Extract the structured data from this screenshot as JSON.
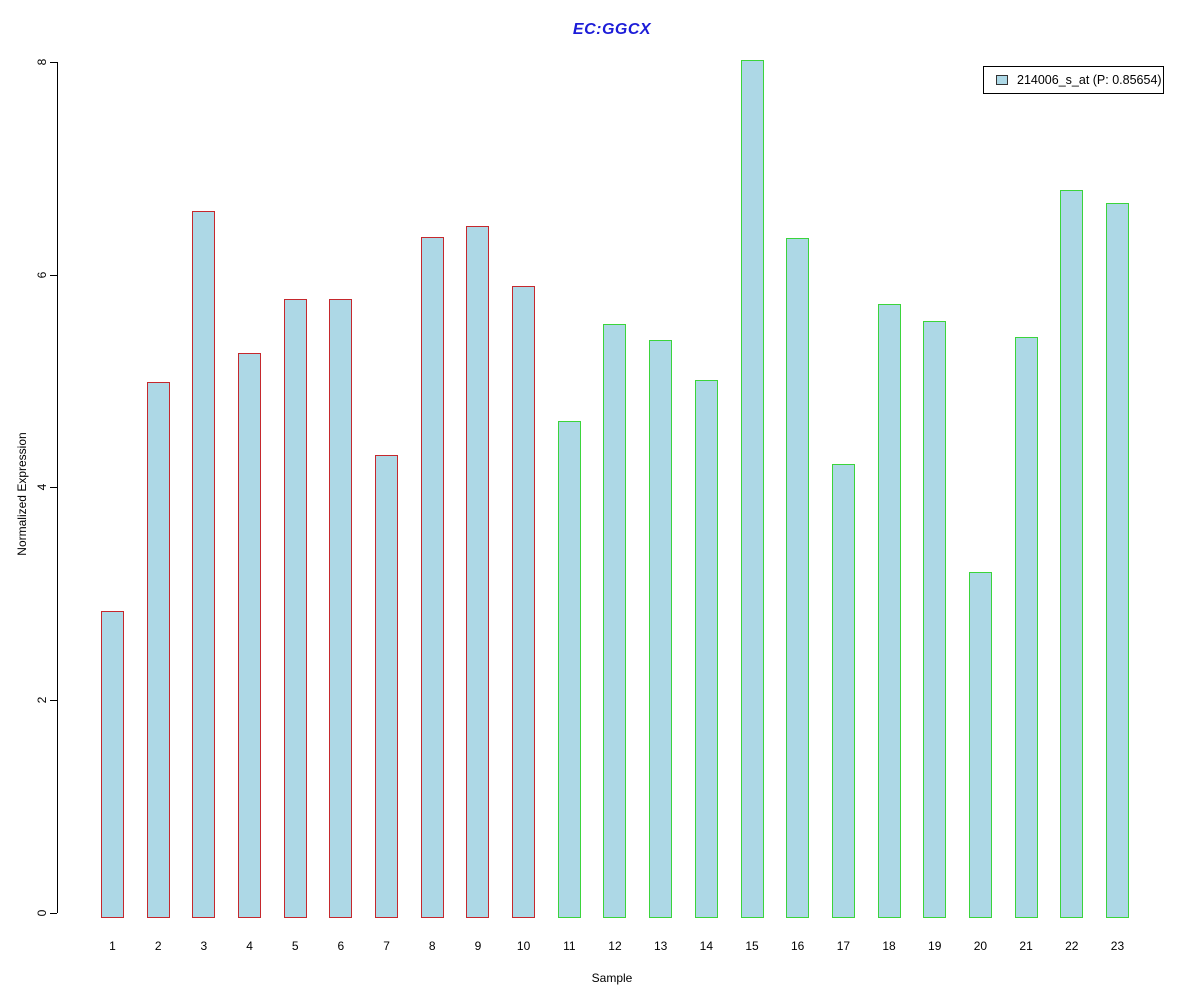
{
  "chart_data": {
    "type": "bar",
    "title": "EC:GGCX",
    "title_color": "#1c1cd8",
    "xlabel": "Sample",
    "ylabel": "Normalized Expression",
    "ylim": [
      0,
      8
    ],
    "yticks": [
      0,
      2,
      4,
      6,
      8
    ],
    "grid": false,
    "categories": [
      "1",
      "2",
      "3",
      "4",
      "5",
      "6",
      "7",
      "8",
      "9",
      "10",
      "11",
      "12",
      "13",
      "14",
      "15",
      "16",
      "17",
      "18",
      "19",
      "20",
      "21",
      "22",
      "23"
    ],
    "series": [
      {
        "name": "214006_s_at (P: 0.85654)",
        "values": [
          2.86,
          5.01,
          6.62,
          5.28,
          5.79,
          5.79,
          4.32,
          6.37,
          6.48,
          5.91,
          4.64,
          5.55,
          5.4,
          5.03,
          8.04,
          6.36,
          4.24,
          5.74,
          5.58,
          3.22,
          5.43,
          6.81,
          6.69
        ]
      }
    ],
    "bar_fill": "#add8e6",
    "group_borders": [
      {
        "label": "samples 1-10",
        "border_color": "#c5282d",
        "count": 10
      },
      {
        "label": "samples 11-23",
        "border_color": "#3bd43b",
        "count": 13
      }
    ],
    "legend": {
      "position": "top-right",
      "entries": [
        {
          "label": "214006_s_at (P: 0.85654)",
          "swatch_fill": "#add8e6",
          "swatch_border": "#333333"
        }
      ]
    }
  }
}
